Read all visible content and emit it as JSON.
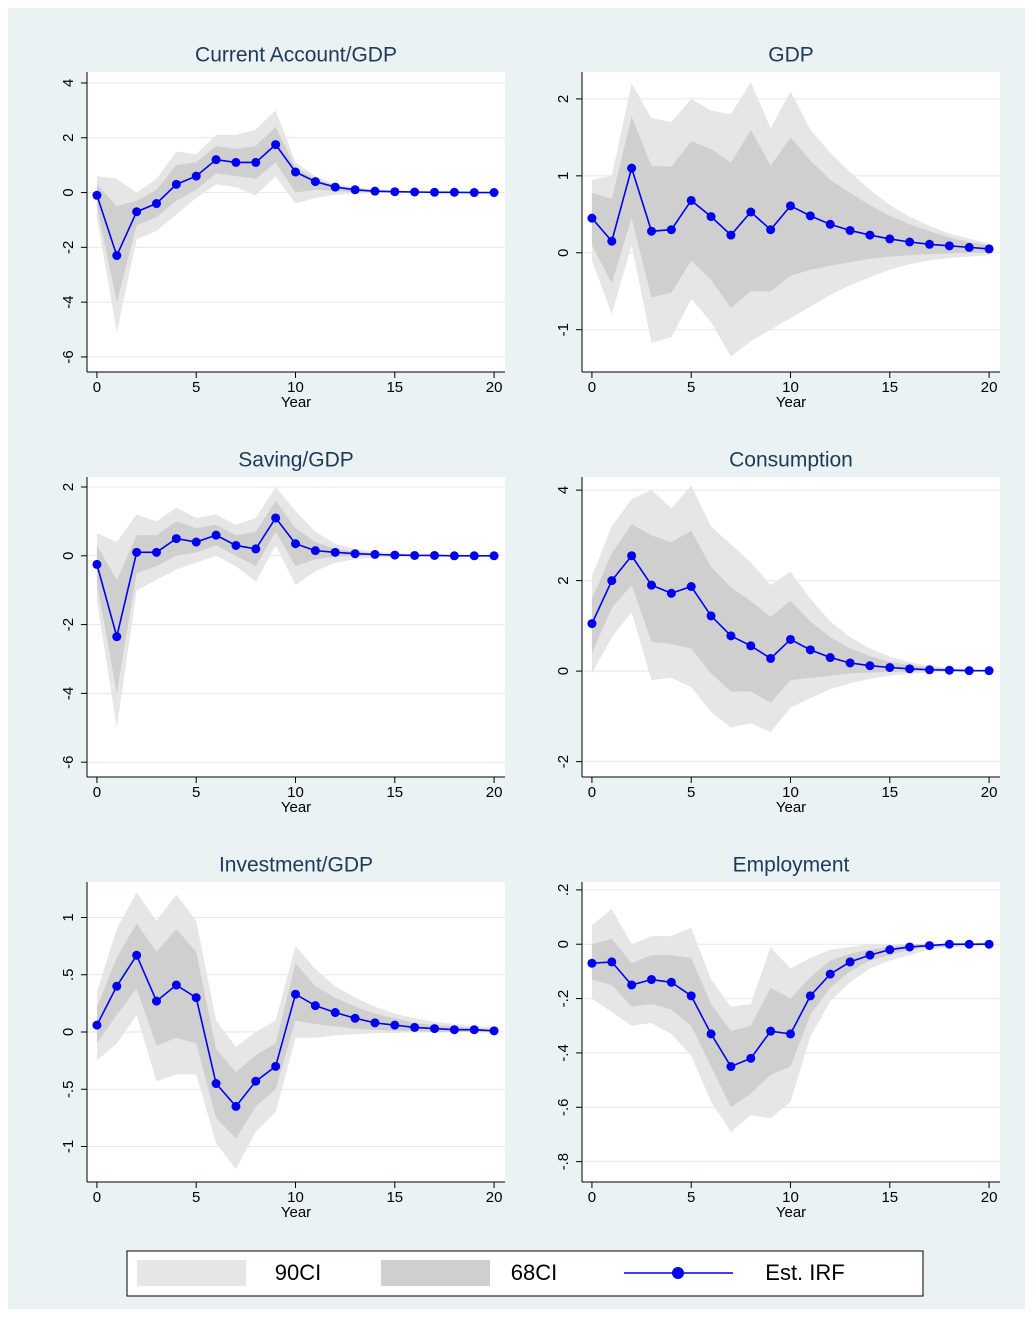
{
  "chart_data": [
    {
      "type": "line",
      "title": "Current Account/GDP",
      "x_label": "Year",
      "x": [
        0,
        1,
        2,
        3,
        4,
        5,
        6,
        7,
        8,
        9,
        10,
        11,
        12,
        13,
        14,
        15,
        16,
        17,
        18,
        19,
        20
      ],
      "xlim": [
        -0.5,
        20.55
      ],
      "xticks": [
        0,
        5,
        10,
        15,
        20
      ],
      "ylim": [
        -6.55,
        4.4
      ],
      "yticks": [
        -6,
        -4,
        -2,
        0,
        2,
        4
      ],
      "grid": true,
      "series": [
        {
          "lower": [
            -0.9,
            -5.1,
            -1.7,
            -1.4,
            -0.8,
            -0.2,
            0.3,
            0.2,
            -0.1,
            0.6,
            -0.4,
            -0.2,
            -0.08,
            -0.04,
            -0.02,
            -0.01,
            -0.01,
            -0.005,
            0,
            0,
            0
          ],
          "upper": [
            0.6,
            0.5,
            0,
            0.5,
            1.5,
            1.4,
            2.1,
            2.1,
            2.3,
            3.0,
            1.1,
            0.6,
            0.3,
            0.2,
            0.12,
            0.08,
            0.05,
            0.03,
            0.02,
            0.01,
            0.01
          ]
        },
        {
          "lower": [
            -0.5,
            -4.0,
            -1.2,
            -0.9,
            -0.3,
            0.1,
            0.7,
            0.6,
            0.5,
            1.1,
            0,
            0.1,
            0.05,
            0.02,
            0.01,
            0,
            0,
            0,
            0,
            0,
            0
          ],
          "upper": [
            0.3,
            -0.5,
            -0.3,
            0.1,
            1.0,
            1.1,
            1.7,
            1.6,
            1.7,
            2.4,
            0.9,
            0.5,
            0.25,
            0.15,
            0.08,
            0.05,
            0.03,
            0.02,
            0.01,
            0.01,
            0
          ]
        },
        {
          "values": [
            -0.1,
            -2.3,
            -0.7,
            -0.4,
            0.3,
            0.6,
            1.2,
            1.1,
            1.1,
            1.75,
            0.75,
            0.4,
            0.2,
            0.1,
            0.05,
            0.03,
            0.02,
            0.01,
            0.01,
            0,
            0
          ]
        }
      ]
    },
    {
      "type": "line",
      "title": "GDP",
      "x_label": "Year",
      "x": [
        0,
        1,
        2,
        3,
        4,
        5,
        6,
        7,
        8,
        9,
        10,
        11,
        12,
        13,
        14,
        15,
        16,
        17,
        18,
        19,
        20
      ],
      "xlim": [
        -0.5,
        20.55
      ],
      "xticks": [
        0,
        5,
        10,
        15,
        20
      ],
      "ylim": [
        -1.55,
        2.35
      ],
      "yticks": [
        -1,
        0,
        1,
        2
      ],
      "grid": true,
      "series": [
        {
          "lower": [
            -0.1,
            -0.8,
            0.1,
            -1.17,
            -1.1,
            -0.6,
            -0.9,
            -1.35,
            -1.15,
            -1.0,
            -0.85,
            -0.7,
            -0.55,
            -0.42,
            -0.32,
            -0.22,
            -0.15,
            -0.1,
            -0.07,
            -0.05,
            -0.03
          ],
          "upper": [
            0.95,
            1.0,
            2.2,
            1.75,
            1.7,
            2.0,
            1.85,
            1.8,
            2.22,
            1.62,
            2.1,
            1.6,
            1.3,
            1.05,
            0.82,
            0.62,
            0.47,
            0.35,
            0.25,
            0.18,
            0.12
          ]
        },
        {
          "lower": [
            0.1,
            -0.4,
            0.45,
            -0.58,
            -0.52,
            -0.1,
            -0.35,
            -0.72,
            -0.5,
            -0.5,
            -0.3,
            -0.22,
            -0.17,
            -0.12,
            -0.08,
            -0.05,
            -0.03,
            -0.02,
            -0.01,
            0,
            0
          ],
          "upper": [
            0.78,
            0.7,
            1.77,
            1.13,
            1.12,
            1.45,
            1.35,
            1.17,
            1.6,
            1.13,
            1.5,
            1.2,
            0.95,
            0.78,
            0.62,
            0.48,
            0.37,
            0.28,
            0.2,
            0.14,
            0.1
          ]
        },
        {
          "values": [
            0.45,
            0.15,
            1.1,
            0.28,
            0.3,
            0.68,
            0.47,
            0.23,
            0.53,
            0.3,
            0.61,
            0.48,
            0.37,
            0.29,
            0.23,
            0.18,
            0.14,
            0.11,
            0.09,
            0.07,
            0.05
          ]
        }
      ]
    },
    {
      "type": "line",
      "title": "Saving/GDP",
      "x_label": "Year",
      "x": [
        0,
        1,
        2,
        3,
        4,
        5,
        6,
        7,
        8,
        9,
        10,
        11,
        12,
        13,
        14,
        15,
        16,
        17,
        18,
        19,
        20
      ],
      "xlim": [
        -0.5,
        20.55
      ],
      "xticks": [
        0,
        5,
        10,
        15,
        20
      ],
      "ylim": [
        -6.43,
        2.29
      ],
      "yticks": [
        -6,
        -4,
        -2,
        0,
        2
      ],
      "grid": true,
      "series": [
        {
          "lower": [
            -1.3,
            -5.0,
            -1.0,
            -0.7,
            -0.4,
            -0.2,
            0,
            -0.3,
            -0.75,
            0.3,
            -0.85,
            -0.45,
            -0.2,
            -0.1,
            -0.05,
            -0.03,
            -0.02,
            -0.01,
            0,
            0,
            0
          ],
          "upper": [
            0.65,
            0.4,
            1.2,
            1.0,
            1.4,
            1.1,
            1.2,
            0.9,
            1.1,
            2.0,
            1.3,
            0.7,
            0.35,
            0.2,
            0.12,
            0.08,
            0.05,
            0.03,
            0.02,
            0.01,
            0.01
          ]
        },
        {
          "lower": [
            -0.8,
            -4.0,
            -0.5,
            -0.3,
            0,
            0.1,
            0.3,
            0,
            -0.3,
            0.7,
            -0.3,
            -0.1,
            -0.02,
            0,
            0,
            0,
            0,
            0,
            0,
            0,
            0
          ],
          "upper": [
            0.3,
            -0.7,
            0.6,
            0.6,
            1.0,
            0.8,
            0.9,
            0.6,
            0.7,
            1.6,
            0.8,
            0.4,
            0.2,
            0.12,
            0.07,
            0.04,
            0.02,
            0.01,
            0.01,
            0,
            0
          ]
        },
        {
          "values": [
            -0.25,
            -2.35,
            0.1,
            0.1,
            0.5,
            0.4,
            0.6,
            0.3,
            0.2,
            1.1,
            0.35,
            0.15,
            0.1,
            0.06,
            0.04,
            0.02,
            0.01,
            0.01,
            0,
            0,
            0
          ]
        }
      ]
    },
    {
      "type": "line",
      "title": "Consumption",
      "x_label": "Year",
      "x": [
        0,
        1,
        2,
        3,
        4,
        5,
        6,
        7,
        8,
        9,
        10,
        11,
        12,
        13,
        14,
        15,
        16,
        17,
        18,
        19,
        20
      ],
      "xlim": [
        -0.5,
        20.55
      ],
      "xticks": [
        0,
        5,
        10,
        15,
        20
      ],
      "ylim": [
        -2.34,
        4.29
      ],
      "yticks": [
        -2,
        0,
        2,
        4
      ],
      "grid": true,
      "series": [
        {
          "lower": [
            -0.05,
            0.75,
            1.3,
            -0.2,
            -0.15,
            -0.35,
            -0.9,
            -1.25,
            -1.15,
            -1.35,
            -0.8,
            -0.6,
            -0.4,
            -0.27,
            -0.17,
            -0.1,
            -0.06,
            -0.03,
            -0.02,
            -0.01,
            0
          ],
          "upper": [
            2.1,
            3.2,
            3.8,
            4.0,
            3.6,
            4.1,
            3.2,
            2.8,
            2.4,
            1.9,
            2.2,
            1.6,
            1.1,
            0.75,
            0.5,
            0.32,
            0.2,
            0.12,
            0.07,
            0.04,
            0.02
          ]
        },
        {
          "lower": [
            0.4,
            1.4,
            1.9,
            0.65,
            0.6,
            0.5,
            -0.05,
            -0.45,
            -0.45,
            -0.7,
            -0.2,
            -0.15,
            -0.1,
            -0.05,
            -0.03,
            -0.02,
            -0.01,
            0,
            0,
            0,
            0
          ],
          "upper": [
            1.6,
            2.6,
            3.25,
            3.0,
            2.85,
            3.1,
            2.3,
            1.85,
            1.55,
            1.2,
            1.55,
            1.1,
            0.75,
            0.5,
            0.33,
            0.21,
            0.13,
            0.08,
            0.05,
            0.03,
            0.02
          ]
        },
        {
          "values": [
            1.05,
            2.0,
            2.55,
            1.9,
            1.72,
            1.87,
            1.22,
            0.78,
            0.56,
            0.28,
            0.7,
            0.47,
            0.3,
            0.18,
            0.12,
            0.08,
            0.05,
            0.03,
            0.02,
            0.01,
            0.01
          ]
        }
      ]
    },
    {
      "type": "line",
      "title": "Investment/GDP",
      "x_label": "Year",
      "x": [
        0,
        1,
        2,
        3,
        4,
        5,
        6,
        7,
        8,
        9,
        10,
        11,
        12,
        13,
        14,
        15,
        16,
        17,
        18,
        19,
        20
      ],
      "xlim": [
        -0.5,
        20.55
      ],
      "xticks": [
        0,
        5,
        10,
        15,
        20
      ],
      "ylim": [
        -1.31,
        1.31
      ],
      "yticks": [
        -1,
        {
          "value": -0.5,
          "label": "-.5"
        },
        0,
        {
          "value": 0.5,
          "label": ".5"
        },
        1
      ],
      "grid": true,
      "series": [
        {
          "lower": [
            -0.25,
            -0.1,
            0.15,
            -0.43,
            -0.37,
            -0.37,
            -0.97,
            -1.2,
            -0.87,
            -0.7,
            -0.05,
            -0.05,
            -0.03,
            -0.02,
            -0.01,
            -0.01,
            0,
            0,
            0,
            0,
            0
          ],
          "upper": [
            0.35,
            0.9,
            1.22,
            0.97,
            1.2,
            0.97,
            0.1,
            -0.13,
            0,
            0.1,
            0.75,
            0.55,
            0.4,
            0.3,
            0.22,
            0.16,
            0.12,
            0.09,
            0.07,
            0.05,
            0.04
          ]
        },
        {
          "lower": [
            -0.1,
            0.15,
            0.38,
            -0.12,
            -0.05,
            -0.1,
            -0.75,
            -0.93,
            -0.65,
            -0.5,
            0.1,
            0.07,
            0.05,
            0.03,
            0.02,
            0.01,
            0.01,
            0,
            0,
            0,
            0
          ],
          "upper": [
            0.22,
            0.65,
            0.95,
            0.7,
            0.9,
            0.7,
            -0.15,
            -0.35,
            -0.2,
            -0.1,
            0.6,
            0.4,
            0.3,
            0.22,
            0.16,
            0.12,
            0.08,
            0.06,
            0.05,
            0.03,
            0.02
          ]
        },
        {
          "values": [
            0.06,
            0.4,
            0.67,
            0.27,
            0.41,
            0.3,
            -0.45,
            -0.65,
            -0.43,
            -0.3,
            0.33,
            0.23,
            0.17,
            0.12,
            0.08,
            0.06,
            0.04,
            0.03,
            0.02,
            0.02,
            0.01
          ]
        }
      ]
    },
    {
      "type": "line",
      "title": "Employment",
      "x_label": "Year",
      "x": [
        0,
        1,
        2,
        3,
        4,
        5,
        6,
        7,
        8,
        9,
        10,
        11,
        12,
        13,
        14,
        15,
        16,
        17,
        18,
        19,
        20
      ],
      "xlim": [
        -0.5,
        20.55
      ],
      "xticks": [
        0,
        5,
        10,
        15,
        20
      ],
      "ylim": [
        -0.875,
        0.229
      ],
      "yticks": [
        {
          "value": -0.8,
          "label": "-.8"
        },
        {
          "value": -0.6,
          "label": "-.6"
        },
        {
          "value": -0.4,
          "label": "-.4"
        },
        {
          "value": -0.2,
          "label": "-.2"
        },
        0,
        {
          "value": 0.2,
          "label": ".2"
        }
      ],
      "grid": true,
      "series": [
        {
          "lower": [
            -0.2,
            -0.25,
            -0.3,
            -0.29,
            -0.33,
            -0.41,
            -0.58,
            -0.69,
            -0.63,
            -0.64,
            -0.58,
            -0.34,
            -0.21,
            -0.14,
            -0.09,
            -0.06,
            -0.04,
            -0.02,
            -0.01,
            -0.01,
            0
          ],
          "upper": [
            0.07,
            0.13,
            0,
            0.03,
            0.03,
            0.06,
            -0.13,
            -0.23,
            -0.22,
            -0.01,
            -0.09,
            -0.05,
            -0.02,
            -0.01,
            0,
            0,
            0,
            0,
            0,
            0,
            0.01
          ]
        },
        {
          "lower": [
            -0.13,
            -0.15,
            -0.23,
            -0.22,
            -0.24,
            -0.3,
            -0.45,
            -0.6,
            -0.55,
            -0.48,
            -0.45,
            -0.26,
            -0.16,
            -0.1,
            -0.06,
            -0.04,
            -0.02,
            -0.01,
            -0.01,
            0,
            0
          ],
          "upper": [
            0,
            0.02,
            -0.07,
            -0.04,
            -0.04,
            -0.05,
            -0.22,
            -0.32,
            -0.3,
            -0.16,
            -0.2,
            -0.12,
            -0.06,
            -0.035,
            -0.02,
            -0.01,
            0,
            0,
            0,
            0,
            0
          ]
        },
        {
          "values": [
            -0.07,
            -0.065,
            -0.15,
            -0.13,
            -0.14,
            -0.19,
            -0.33,
            -0.45,
            -0.42,
            -0.32,
            -0.33,
            -0.19,
            -0.11,
            -0.065,
            -0.04,
            -0.02,
            -0.01,
            -0.005,
            0,
            0,
            0
          ]
        }
      ]
    }
  ],
  "legend": [
    {
      "name": "90CI",
      "color": "#e6e6e6"
    },
    {
      "name": "68CI",
      "color": "#cfcfcf"
    },
    {
      "name": "Est. IRF",
      "color": "#0000ee"
    }
  ]
}
